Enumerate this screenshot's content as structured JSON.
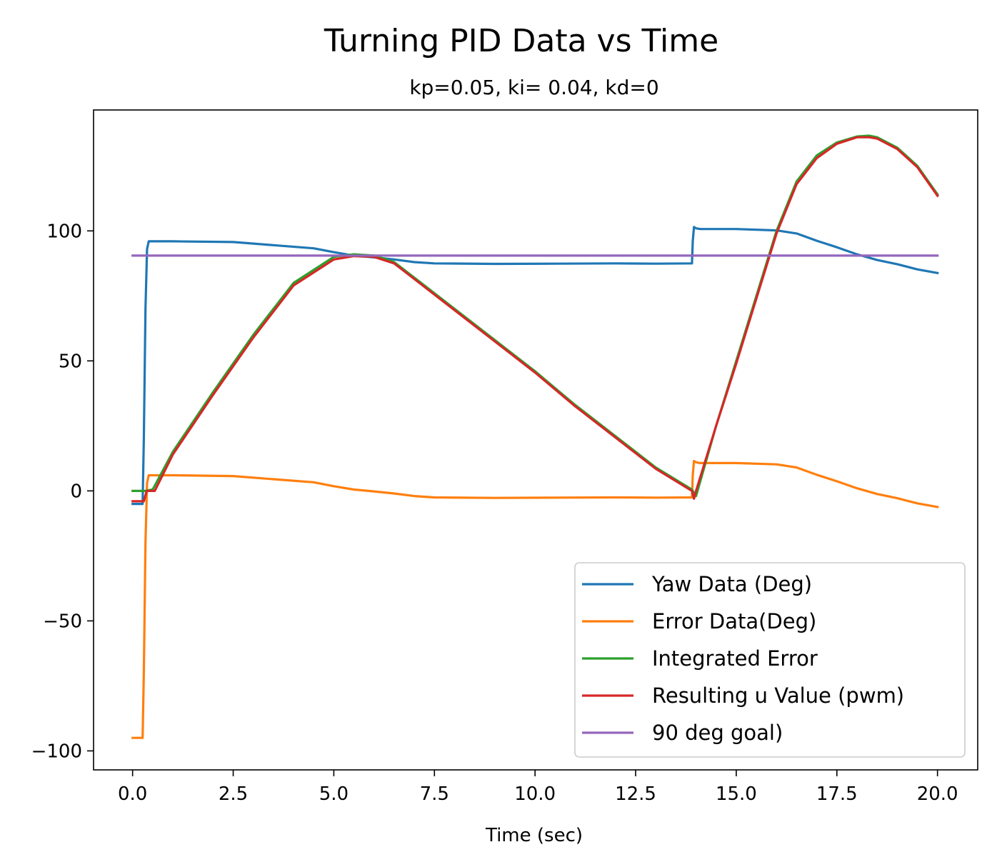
{
  "chart_data": {
    "type": "line",
    "title": "Turning PID Data vs Time",
    "subtitle": "kp=0.05, ki= 0.04, kd=0",
    "xlabel": "Time (sec)",
    "ylabel": "",
    "xlim": [
      -0.97,
      21.0
    ],
    "ylim": [
      -107.3,
      146.5
    ],
    "xticks": [
      0.0,
      2.5,
      5.0,
      7.5,
      10.0,
      12.5,
      15.0,
      17.5,
      20.0
    ],
    "xtick_labels": [
      "0.0",
      "2.5",
      "5.0",
      "7.5",
      "10.0",
      "12.5",
      "15.0",
      "17.5",
      "20.0"
    ],
    "yticks": [
      100,
      50,
      0,
      -50,
      -100
    ],
    "ytick_labels": [
      "100",
      "50",
      "0",
      "−50",
      "−100"
    ],
    "grid": false,
    "legend_position": "lower right",
    "series": [
      {
        "name": "Yaw Data (Deg)",
        "color": "#1f77b4",
        "x": [
          0.0,
          0.25,
          0.28,
          0.32,
          0.36,
          0.4,
          0.45,
          1.0,
          2.5,
          3.5,
          4.5,
          5.0,
          5.5,
          6.0,
          6.5,
          7.0,
          7.5,
          9.0,
          10.5,
          12.0,
          13.0,
          13.9,
          13.92,
          13.95,
          14.0,
          14.1,
          15.0,
          16.0,
          16.5,
          17.0,
          17.5,
          18.0,
          18.5,
          19.0,
          19.5,
          20.0
        ],
        "y": [
          -5,
          -5,
          20,
          70,
          93,
          96,
          96,
          96,
          95.7,
          94.5,
          93.3,
          91.8,
          90.5,
          89.8,
          89,
          88,
          87.5,
          87.3,
          87.4,
          87.5,
          87.4,
          87.5,
          96,
          101.5,
          101,
          100.7,
          100.7,
          100.2,
          99,
          96.2,
          93.7,
          91,
          88.8,
          87.2,
          85.2,
          83.8
        ]
      },
      {
        "name": "Error Data(Deg)",
        "color": "#ff7f0e",
        "x": [
          0.0,
          0.25,
          0.28,
          0.32,
          0.36,
          0.4,
          0.5,
          1.0,
          2.5,
          3.5,
          4.5,
          5.0,
          5.5,
          6.0,
          6.5,
          7.0,
          7.5,
          9.0,
          10.5,
          12.0,
          13.0,
          13.9,
          13.92,
          13.95,
          14.0,
          14.1,
          15.0,
          16.0,
          16.5,
          17.0,
          17.5,
          18.0,
          18.5,
          19.0,
          19.5,
          20.0
        ],
        "y": [
          -95,
          -95,
          -70,
          -20,
          3,
          6,
          6,
          6,
          5.7,
          4.5,
          3.3,
          1.8,
          0.5,
          -0.2,
          -1,
          -2,
          -2.5,
          -2.7,
          -2.6,
          -2.5,
          -2.6,
          -2.5,
          6,
          11.5,
          11,
          10.7,
          10.7,
          10.2,
          9,
          6.2,
          3.7,
          1,
          -1.2,
          -2.8,
          -4.8,
          -6.2
        ]
      },
      {
        "name": "Integrated Error",
        "color": "#2ca02c",
        "x": [
          0.0,
          0.28,
          0.3,
          0.5,
          1.0,
          2.0,
          3.0,
          4.0,
          5.0,
          5.5,
          6.0,
          6.5,
          7.0,
          8.0,
          9.0,
          10.0,
          11.0,
          12.0,
          13.0,
          13.9,
          14.0,
          14.5,
          15.0,
          15.5,
          16.0,
          16.5,
          17.0,
          17.5,
          18.0,
          18.3,
          18.5,
          19.0,
          19.5,
          20.0
        ],
        "y": [
          0,
          0,
          0,
          0.5,
          15,
          38,
          60,
          80,
          90,
          91,
          90.5,
          88,
          82,
          70,
          58,
          46,
          33,
          21,
          9,
          0.5,
          -2,
          25,
          50,
          75,
          100,
          119,
          129,
          134,
          136.3,
          136.6,
          136,
          132,
          125,
          114
        ]
      },
      {
        "name": "Resulting u Value (pwm)",
        "color": "#d62728",
        "x": [
          0.0,
          0.2,
          0.28,
          0.35,
          0.55,
          1.0,
          2.0,
          3.0,
          4.0,
          5.0,
          5.5,
          6.0,
          6.5,
          7.0,
          8.0,
          9.0,
          10.0,
          11.0,
          12.0,
          13.0,
          13.9,
          13.95,
          14.0,
          14.5,
          15.0,
          15.5,
          16.0,
          16.5,
          17.0,
          17.5,
          18.0,
          18.3,
          18.5,
          19.0,
          19.5,
          20.0
        ],
        "y": [
          -4,
          -4,
          -4,
          0,
          0,
          14,
          37,
          59,
          79,
          89,
          90.3,
          90,
          87.5,
          81.5,
          69.5,
          57.5,
          45.5,
          32.5,
          20.5,
          8.5,
          0,
          -3,
          0,
          25,
          49,
          74,
          99,
          118,
          128,
          133.5,
          136,
          136,
          135.5,
          131.5,
          124.5,
          113.5
        ]
      },
      {
        "name": "90 deg goal)",
        "color": "#9467bd",
        "x": [
          0.0,
          20.0
        ],
        "y": [
          90.5,
          90.5
        ]
      }
    ]
  }
}
